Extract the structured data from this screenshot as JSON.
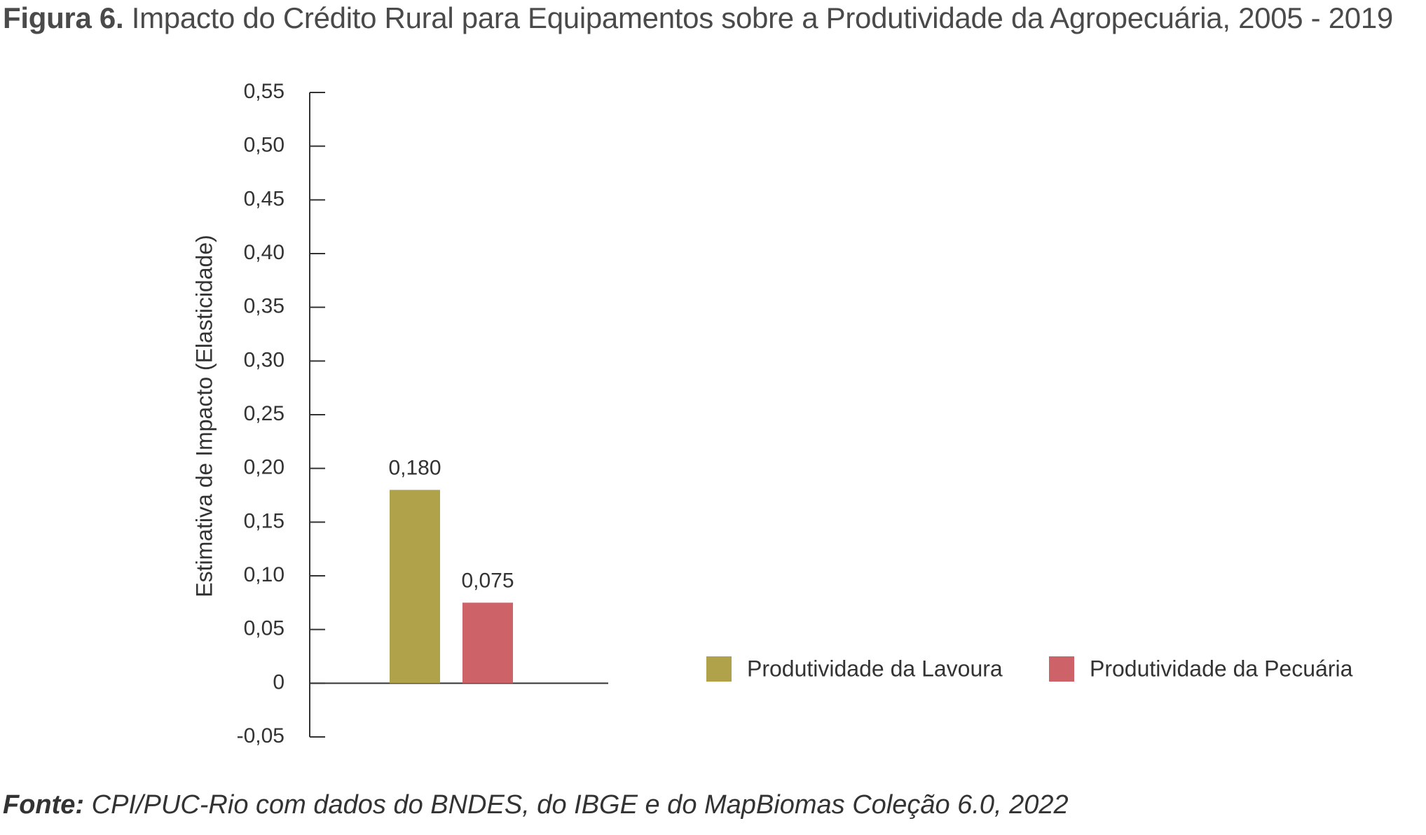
{
  "header": {
    "figure_label": "Figura 6.",
    "title": "Impacto do Crédito Rural para Equipamentos sobre a Produtividade da Agropecuária, 2005 - 2019"
  },
  "footer": {
    "source_label": "Fonte:",
    "source_text": "CPI/PUC-Rio com dados do BNDES, do IBGE e do MapBiomas Coleção 6.0, 2022"
  },
  "chart_data": {
    "type": "bar",
    "ylabel": "Estimativa de Impacto (Elasticidade)",
    "xlabel": "",
    "ylim": [
      -0.05,
      0.55
    ],
    "yticks": [
      {
        "value": 0.55,
        "label": "0,55"
      },
      {
        "value": 0.5,
        "label": "0,50"
      },
      {
        "value": 0.45,
        "label": "0,45"
      },
      {
        "value": 0.4,
        "label": "0,40"
      },
      {
        "value": 0.35,
        "label": "0,35"
      },
      {
        "value": 0.3,
        "label": "0,30"
      },
      {
        "value": 0.25,
        "label": "0,25"
      },
      {
        "value": 0.2,
        "label": "0,20"
      },
      {
        "value": 0.15,
        "label": "0,15"
      },
      {
        "value": 0.1,
        "label": "0,10"
      },
      {
        "value": 0.05,
        "label": "0,05"
      },
      {
        "value": 0,
        "label": "0"
      },
      {
        "value": -0.05,
        "label": "-0,05"
      }
    ],
    "series": [
      {
        "name": "Produtividade da Lavoura",
        "value": 0.18,
        "label": "0,180",
        "color": "#b0a24a"
      },
      {
        "name": "Produtividade da Pecuária",
        "value": 0.075,
        "label": "0,075",
        "color": "#cd6368"
      }
    ],
    "grid": false,
    "legend_position": "right"
  }
}
